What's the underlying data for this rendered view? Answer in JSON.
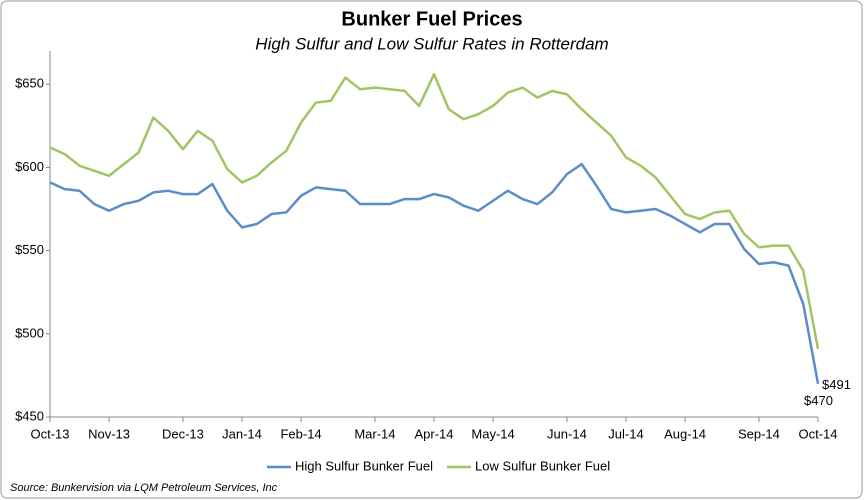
{
  "chart_data": {
    "type": "line",
    "title": "Bunker Fuel Prices",
    "subtitle": "High Sulfur and Low Sulfur Rates in Rotterdam",
    "source": "Source: Bunkervision via LQM Petroleum Services, Inc",
    "categories": [
      "Oct-13",
      null,
      null,
      null,
      "Nov-13",
      null,
      null,
      null,
      null,
      "Dec-13",
      null,
      null,
      null,
      "Jan-14",
      null,
      null,
      null,
      "Feb-14",
      null,
      null,
      null,
      null,
      "Mar-14",
      null,
      null,
      null,
      "Apr-14",
      null,
      null,
      null,
      "May-14",
      null,
      null,
      null,
      null,
      "Jun-14",
      null,
      null,
      null,
      "Jul-14",
      null,
      null,
      null,
      "Aug-14",
      null,
      null,
      null,
      null,
      "Sep-14",
      null,
      null,
      null,
      "Oct-14"
    ],
    "series": [
      {
        "name": "High Sulfur Bunker Fuel",
        "color": "#5b8ec9",
        "values": [
          591,
          587,
          586,
          578,
          574,
          578,
          580,
          585,
          586,
          584,
          584,
          590,
          574,
          564,
          566,
          572,
          573,
          583,
          588,
          587,
          586,
          578,
          578,
          578,
          581,
          581,
          584,
          582,
          577,
          574,
          580,
          586,
          581,
          578,
          585,
          596,
          602,
          589,
          575,
          573,
          574,
          575,
          571,
          566,
          561,
          566,
          566,
          551,
          542,
          543,
          541,
          518,
          470
        ],
        "value_labels": [
          null,
          null,
          null,
          null,
          null,
          null,
          null,
          null,
          null,
          null,
          null,
          null,
          null,
          null,
          null,
          null,
          null,
          null,
          null,
          null,
          null,
          null,
          null,
          null,
          null,
          null,
          null,
          null,
          null,
          null,
          null,
          null,
          null,
          null,
          null,
          null,
          null,
          null,
          null,
          null,
          null,
          null,
          null,
          null,
          null,
          null,
          null,
          null,
          null,
          null,
          null,
          null,
          "$470"
        ]
      },
      {
        "name": "Low Sulfur Bunker Fuel",
        "color": "#a2c563",
        "values": [
          612,
          608,
          601,
          598,
          595,
          602,
          609,
          630,
          622,
          611,
          622,
          616,
          599,
          591,
          595,
          603,
          610,
          627,
          639,
          640,
          654,
          647,
          648,
          647,
          646,
          637,
          656,
          635,
          629,
          632,
          637,
          645,
          648,
          642,
          646,
          644,
          635,
          627,
          619,
          606,
          601,
          594,
          583,
          572,
          569,
          573,
          574,
          560,
          552,
          553,
          553,
          538,
          491
        ],
        "value_labels": [
          null,
          null,
          null,
          null,
          null,
          null,
          null,
          null,
          null,
          null,
          null,
          null,
          null,
          null,
          null,
          null,
          null,
          null,
          null,
          null,
          null,
          null,
          null,
          null,
          null,
          null,
          null,
          null,
          null,
          null,
          null,
          null,
          null,
          null,
          null,
          null,
          null,
          null,
          null,
          null,
          null,
          null,
          null,
          null,
          null,
          null,
          null,
          null,
          null,
          null,
          null,
          null,
          "$491"
        ]
      }
    ],
    "ylim": [
      450,
      670
    ],
    "yticks": [
      {
        "value": 450,
        "label": "$450"
      },
      {
        "value": 500,
        "label": "$500"
      },
      {
        "value": 550,
        "label": "$550"
      },
      {
        "value": 600,
        "label": "$600"
      },
      {
        "value": 650,
        "label": "$650"
      }
    ],
    "grid": false,
    "legend": "bottom"
  }
}
